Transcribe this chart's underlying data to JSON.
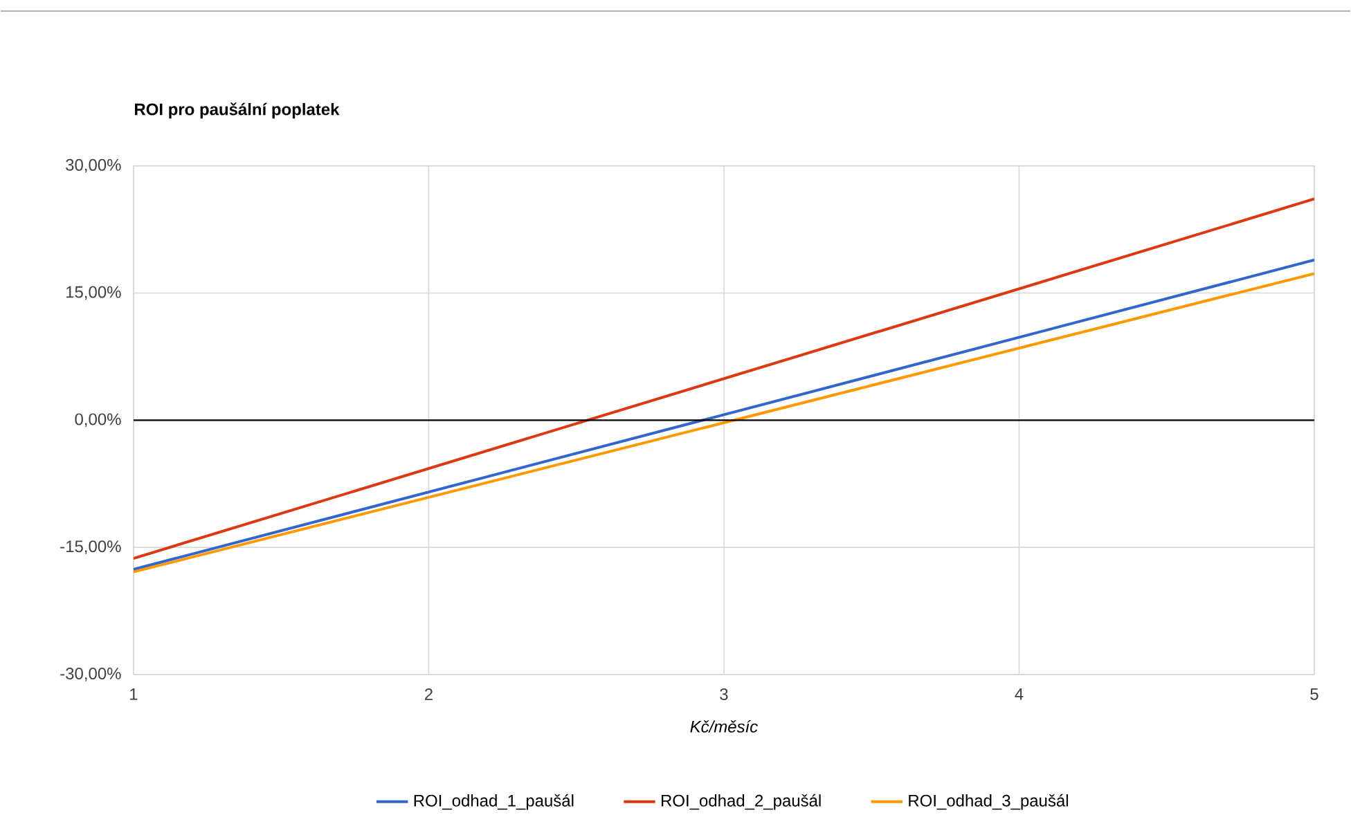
{
  "chart_data": {
    "type": "line",
    "title": "ROI pro paušální poplatek",
    "xlabel": "Kč/měsíc",
    "x": [
      1,
      5
    ],
    "series": [
      {
        "name": "ROI_odhad_1_paušál",
        "color": "#3366cc",
        "values": [
          -17.6,
          18.9
        ]
      },
      {
        "name": "ROI_odhad_2_paušál",
        "color": "#dc3912",
        "values": [
          -16.3,
          26.1
        ]
      },
      {
        "name": "ROI_odhad_3_paušál",
        "color": "#ff9900",
        "values": [
          -17.9,
          17.3
        ]
      }
    ],
    "xlim": [
      1,
      5
    ],
    "xticks": [
      1,
      2,
      3,
      4,
      5
    ],
    "ylim": [
      -30,
      30
    ],
    "yticks": [
      {
        "value": -30,
        "label": "-30,00%"
      },
      {
        "value": -15,
        "label": "-15,00%"
      },
      {
        "value": 0,
        "label": "0,00%"
      },
      {
        "value": 15,
        "label": "15,00%"
      },
      {
        "value": 30,
        "label": "30,00%"
      }
    ],
    "ref_lines": [
      {
        "axis": "y",
        "value": 0,
        "color": "#000000"
      }
    ],
    "grid": true,
    "legend": "bottom"
  }
}
